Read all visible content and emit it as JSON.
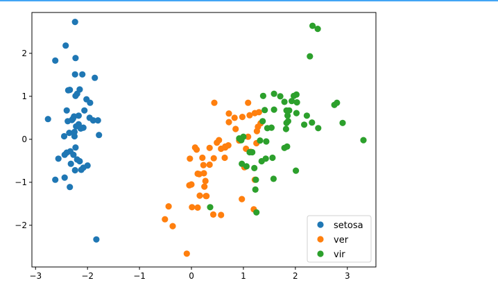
{
  "chart_data": {
    "type": "scatter",
    "xlim": [
      -3.07,
      3.55
    ],
    "ylim": [
      -2.97,
      2.95
    ],
    "x_ticks": [
      -3,
      -2,
      -1,
      0,
      1,
      2,
      3
    ],
    "y_ticks": [
      -2,
      -1,
      0,
      1,
      2
    ],
    "x_tick_labels": [
      "−3",
      "−2",
      "−1",
      "0",
      "1",
      "2",
      "3"
    ],
    "y_tick_labels": [
      "−2",
      "−1",
      "0",
      "1",
      "2"
    ],
    "grid": false,
    "legend": "bottom-right",
    "series": [
      {
        "name": "setosa",
        "color": "#1f77b4",
        "points": [
          [
            -2.24,
            2.73
          ],
          [
            -2.42,
            2.18
          ],
          [
            -2.23,
            1.89
          ],
          [
            -2.62,
            1.83
          ],
          [
            -2.24,
            1.51
          ],
          [
            -2.1,
            1.51
          ],
          [
            -1.86,
            1.43
          ],
          [
            -2.37,
            1.14
          ],
          [
            -2.34,
            1.15
          ],
          [
            -2.15,
            1.16
          ],
          [
            -2.2,
            1.06
          ],
          [
            -2.23,
            1.01
          ],
          [
            -2.02,
            0.93
          ],
          [
            -1.95,
            0.85
          ],
          [
            -2.4,
            0.67
          ],
          [
            -2.06,
            0.67
          ],
          [
            -2.17,
            0.55
          ],
          [
            -2.26,
            0.53
          ],
          [
            -2.28,
            0.48
          ],
          [
            -2.3,
            0.45
          ],
          [
            -1.96,
            0.5
          ],
          [
            -2.76,
            0.47
          ],
          [
            -1.89,
            0.44
          ],
          [
            -1.8,
            0.44
          ],
          [
            -2.38,
            0.42
          ],
          [
            -2.17,
            0.35
          ],
          [
            -2.22,
            0.3
          ],
          [
            -2.08,
            0.27
          ],
          [
            -2.13,
            0.25
          ],
          [
            -2.35,
            0.15
          ],
          [
            -2.25,
            0.17
          ],
          [
            -1.78,
            0.1
          ],
          [
            -2.45,
            0.07
          ],
          [
            -2.25,
            0.07
          ],
          [
            -2.23,
            -0.19
          ],
          [
            -2.33,
            -0.28
          ],
          [
            -2.4,
            -0.31
          ],
          [
            -2.44,
            -0.36
          ],
          [
            -2.27,
            -0.36
          ],
          [
            -2.56,
            -0.45
          ],
          [
            -2.2,
            -0.47
          ],
          [
            -2.15,
            -0.51
          ],
          [
            -2.32,
            -0.57
          ],
          [
            -2.0,
            -0.61
          ],
          [
            -2.08,
            -0.66
          ],
          [
            -2.12,
            -0.71
          ],
          [
            -2.24,
            -0.72
          ],
          [
            -2.62,
            -0.94
          ],
          [
            -2.44,
            -0.89
          ],
          [
            -2.34,
            -1.11
          ],
          [
            -1.83,
            -2.33
          ]
        ]
      },
      {
        "name": "ver",
        "color": "#ff7f0e",
        "points": [
          [
            0.44,
            0.85
          ],
          [
            1.09,
            0.85
          ],
          [
            1.22,
            0.61
          ],
          [
            1.3,
            0.63
          ],
          [
            1.12,
            0.56
          ],
          [
            0.72,
            0.6
          ],
          [
            0.83,
            0.5
          ],
          [
            0.98,
            0.52
          ],
          [
            0.72,
            0.4
          ],
          [
            1.33,
            0.37
          ],
          [
            1.26,
            0.19
          ],
          [
            0.85,
            0.24
          ],
          [
            1.28,
            0.29
          ],
          [
            1.09,
            0.06
          ],
          [
            0.92,
            -0.03
          ],
          [
            0.53,
            -0.02
          ],
          [
            0.49,
            -0.08
          ],
          [
            0.71,
            -0.14
          ],
          [
            0.65,
            -0.17
          ],
          [
            0.35,
            -0.2
          ],
          [
            0.07,
            -0.19
          ],
          [
            0.1,
            -0.24
          ],
          [
            0.57,
            -0.22
          ],
          [
            0.65,
            -0.19
          ],
          [
            1.05,
            -0.22
          ],
          [
            1.25,
            -0.09
          ],
          [
            1.14,
            -0.29
          ],
          [
            -0.03,
            -0.45
          ],
          [
            0.21,
            -0.43
          ],
          [
            0.43,
            -0.44
          ],
          [
            0.64,
            -0.43
          ],
          [
            0.23,
            -0.6
          ],
          [
            0.35,
            -0.59
          ],
          [
            0.12,
            -0.8
          ],
          [
            0.24,
            -0.79
          ],
          [
            0.15,
            -0.81
          ],
          [
            0.27,
            -0.97
          ],
          [
            0.0,
            -1.05
          ],
          [
            -0.04,
            -1.07
          ],
          [
            0.25,
            -1.1
          ],
          [
            1.02,
            -0.65
          ],
          [
            1.22,
            -0.94
          ],
          [
            0.16,
            -1.31
          ],
          [
            0.28,
            -1.32
          ],
          [
            0.29,
            -1.32
          ],
          [
            -0.44,
            -1.56
          ],
          [
            0.12,
            -1.59
          ],
          [
            0.01,
            -1.58
          ],
          [
            0.97,
            -1.39
          ],
          [
            0.42,
            -1.75
          ],
          [
            0.57,
            -1.76
          ],
          [
            1.2,
            -1.63
          ],
          [
            -0.51,
            -1.86
          ],
          [
            -0.36,
            -2.02
          ],
          [
            -0.09,
            -2.66
          ]
        ]
      },
      {
        "name": "vir",
        "color": "#2ca02c",
        "points": [
          [
            2.33,
            2.64
          ],
          [
            2.43,
            2.57
          ],
          [
            2.28,
            1.93
          ],
          [
            1.59,
            1.06
          ],
          [
            1.71,
            1.0
          ],
          [
            1.38,
            1.01
          ],
          [
            1.97,
            1.01
          ],
          [
            2.02,
            1.04
          ],
          [
            1.93,
            0.89
          ],
          [
            2.03,
            0.86
          ],
          [
            1.79,
            0.87
          ],
          [
            2.8,
            0.85
          ],
          [
            2.75,
            0.8
          ],
          [
            1.41,
            0.68
          ],
          [
            1.59,
            0.69
          ],
          [
            1.83,
            0.67
          ],
          [
            1.88,
            0.67
          ],
          [
            2.02,
            0.61
          ],
          [
            1.85,
            0.55
          ],
          [
            2.22,
            0.55
          ],
          [
            2.32,
            0.39
          ],
          [
            1.37,
            0.42
          ],
          [
            1.86,
            0.42
          ],
          [
            1.83,
            0.38
          ],
          [
            2.91,
            0.38
          ],
          [
            1.46,
            0.26
          ],
          [
            1.54,
            0.27
          ],
          [
            1.82,
            0.24
          ],
          [
            2.17,
            0.34
          ],
          [
            2.44,
            0.26
          ],
          [
            1.0,
            0.06
          ],
          [
            0.92,
            0.02
          ],
          [
            0.96,
            -0.02
          ],
          [
            1.44,
            -0.05
          ],
          [
            1.32,
            -0.03
          ],
          [
            1.17,
            -0.3
          ],
          [
            1.12,
            -0.3
          ],
          [
            1.79,
            -0.2
          ],
          [
            1.84,
            -0.17
          ],
          [
            1.43,
            -0.45
          ],
          [
            1.56,
            -0.43
          ],
          [
            1.35,
            -0.51
          ],
          [
            0.97,
            -0.57
          ],
          [
            1.06,
            -0.63
          ],
          [
            1.21,
            -0.67
          ],
          [
            2.01,
            -0.73
          ],
          [
            1.58,
            -0.92
          ],
          [
            1.24,
            -0.94
          ],
          [
            1.23,
            -1.17
          ],
          [
            0.36,
            -1.58
          ],
          [
            1.25,
            -1.7
          ],
          [
            3.31,
            -0.02
          ]
        ]
      }
    ]
  }
}
